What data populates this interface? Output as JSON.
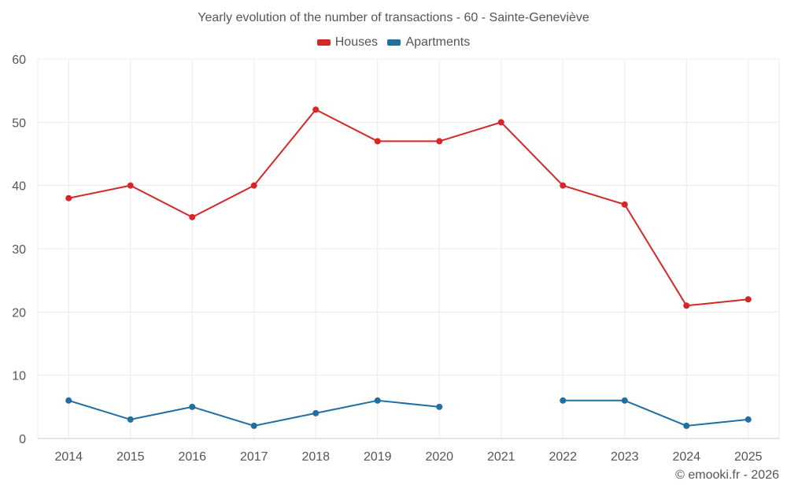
{
  "chart_data": {
    "type": "line",
    "title": "Yearly evolution of the number of transactions - 60 - Sainte-Geneviève",
    "xlabel": "",
    "ylabel": "",
    "categories": [
      "2014",
      "2015",
      "2016",
      "2017",
      "2018",
      "2019",
      "2020",
      "2021",
      "2022",
      "2023",
      "2024",
      "2025"
    ],
    "ylim": [
      0,
      60
    ],
    "yticks": [
      0,
      10,
      20,
      30,
      40,
      50,
      60
    ],
    "grid": true,
    "legend_position": "top-center",
    "series": [
      {
        "name": "Houses",
        "color": "#d62728",
        "values": [
          38,
          40,
          35,
          40,
          52,
          47,
          47,
          50,
          40,
          37,
          21,
          22
        ]
      },
      {
        "name": "Apartments",
        "color": "#1f6fa3",
        "values": [
          6,
          3,
          5,
          2,
          4,
          6,
          5,
          null,
          6,
          6,
          2,
          3
        ]
      }
    ]
  },
  "credit": "© emooki.fr - 2026"
}
